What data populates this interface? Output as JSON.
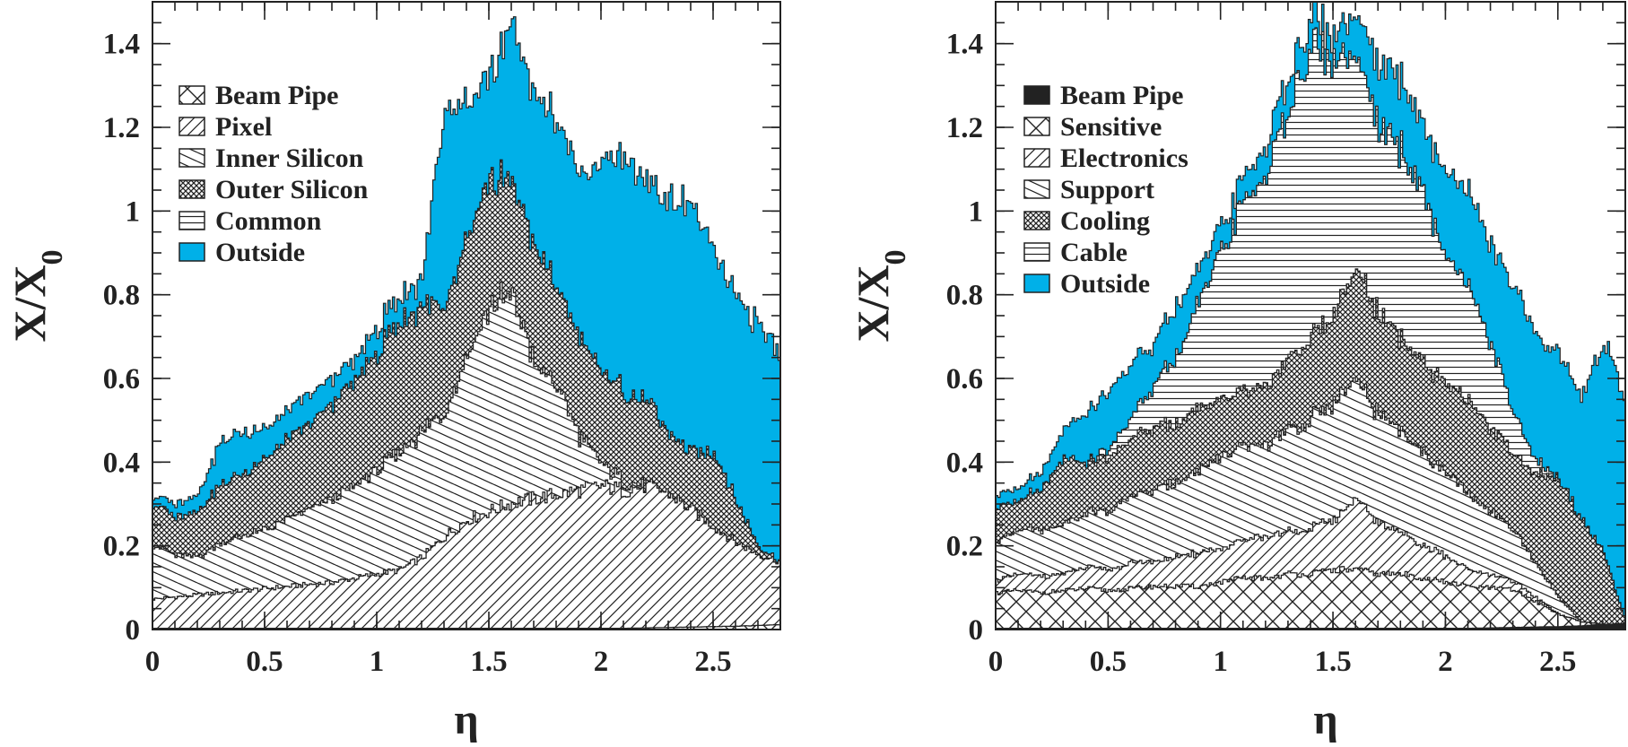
{
  "chart_data": [
    {
      "type": "area",
      "stacked": true,
      "xlabel": "η",
      "ylabel": "X/X0",
      "xlim": [
        0,
        2.8
      ],
      "ylim": [
        0,
        1.5
      ],
      "x_ticks": [
        "0",
        "0.5",
        "1",
        "1.5",
        "2",
        "2.5"
      ],
      "x_tick_values": [
        0,
        0.5,
        1,
        1.5,
        2,
        2.5
      ],
      "y_ticks": [
        "0",
        "0.2",
        "0.4",
        "0.6",
        "0.8",
        "1",
        "1.2",
        "1.4"
      ],
      "y_tick_values": [
        0,
        0.2,
        0.4,
        0.6,
        0.8,
        1.0,
        1.2,
        1.4
      ],
      "legend_position": "top-left",
      "x": [
        0,
        0.1,
        0.2,
        0.3,
        0.4,
        0.5,
        0.6,
        0.7,
        0.8,
        0.9,
        1.0,
        1.1,
        1.2,
        1.3,
        1.4,
        1.5,
        1.6,
        1.7,
        1.8,
        1.9,
        2.0,
        2.1,
        2.2,
        2.3,
        2.4,
        2.5,
        2.6,
        2.7,
        2.8
      ],
      "series": [
        {
          "name": "Beam Pipe",
          "pattern": "crosshatch",
          "values": [
            0.003,
            0.003,
            0.003,
            0.003,
            0.003,
            0.003,
            0.003,
            0.003,
            0.003,
            0.003,
            0.003,
            0.003,
            0.003,
            0.003,
            0.003,
            0.003,
            0.003,
            0.003,
            0.003,
            0.003,
            0.003,
            0.003,
            0.004,
            0.005,
            0.006,
            0.007,
            0.008,
            0.01,
            0.012
          ]
        },
        {
          "name": "Pixel",
          "pattern": "diag-right",
          "values": [
            0.07,
            0.075,
            0.08,
            0.085,
            0.09,
            0.095,
            0.1,
            0.105,
            0.11,
            0.12,
            0.13,
            0.14,
            0.17,
            0.22,
            0.26,
            0.28,
            0.3,
            0.31,
            0.32,
            0.33,
            0.34,
            0.33,
            0.34,
            0.32,
            0.28,
            0.24,
            0.2,
            0.17,
            0.15
          ]
        },
        {
          "name": "Inner Silicon",
          "pattern": "diag-left",
          "values": [
            0.13,
            0.1,
            0.09,
            0.12,
            0.13,
            0.14,
            0.16,
            0.18,
            0.2,
            0.22,
            0.25,
            0.28,
            0.3,
            0.3,
            0.4,
            0.49,
            0.5,
            0.32,
            0.26,
            0.13,
            0.05,
            0.02,
            0.0,
            0.0,
            0.0,
            0.0,
            0.0,
            0.0,
            0.0
          ]
        },
        {
          "name": "Outer Silicon",
          "pattern": "dense-cross",
          "values": [
            0.1,
            0.09,
            0.11,
            0.14,
            0.15,
            0.17,
            0.19,
            0.2,
            0.23,
            0.25,
            0.28,
            0.31,
            0.3,
            0.25,
            0.28,
            0.3,
            0.27,
            0.28,
            0.24,
            0.23,
            0.22,
            0.22,
            0.2,
            0.14,
            0.14,
            0.18,
            0.1,
            0.02,
            0.0
          ]
        },
        {
          "name": "Common",
          "pattern": "horizontal",
          "values": [
            0.0,
            0.0,
            0.0,
            0.0,
            0.0,
            0.0,
            0.0,
            0.0,
            0.0,
            0.0,
            0.0,
            0.0,
            0.0,
            0.0,
            0.0,
            0.0,
            0.0,
            0.0,
            0.0,
            0.0,
            0.0,
            0.0,
            0.0,
            0.0,
            0.0,
            0.0,
            0.0,
            0.0,
            0.0
          ]
        },
        {
          "name": "Outside",
          "pattern": "solid",
          "color": "#00B0E8",
          "values": [
            0.02,
            0.03,
            0.04,
            0.1,
            0.1,
            0.07,
            0.07,
            0.07,
            0.06,
            0.05,
            0.06,
            0.06,
            0.07,
            0.48,
            0.32,
            0.24,
            0.38,
            0.36,
            0.4,
            0.39,
            0.5,
            0.56,
            0.52,
            0.56,
            0.59,
            0.48,
            0.48,
            0.53,
            0.5
          ]
        }
      ]
    },
    {
      "type": "area",
      "stacked": true,
      "xlabel": "η",
      "ylabel": "X/X0",
      "xlim": [
        0,
        2.8
      ],
      "ylim": [
        0,
        1.5
      ],
      "x_ticks": [
        "0",
        "0.5",
        "1",
        "1.5",
        "2",
        "2.5"
      ],
      "x_tick_values": [
        0,
        0.5,
        1,
        1.5,
        2,
        2.5
      ],
      "y_ticks": [
        "0",
        "0.2",
        "0.4",
        "0.6",
        "0.8",
        "1",
        "1.2",
        "1.4"
      ],
      "y_tick_values": [
        0,
        0.2,
        0.4,
        0.6,
        0.8,
        1.0,
        1.2,
        1.4
      ],
      "legend_position": "top-left",
      "x": [
        0,
        0.1,
        0.2,
        0.3,
        0.4,
        0.5,
        0.6,
        0.7,
        0.8,
        0.9,
        1.0,
        1.1,
        1.2,
        1.3,
        1.4,
        1.5,
        1.6,
        1.7,
        1.8,
        1.9,
        2.0,
        2.1,
        2.2,
        2.3,
        2.4,
        2.5,
        2.6,
        2.7,
        2.8
      ],
      "series": [
        {
          "name": "Beam Pipe",
          "pattern": "solid",
          "color": "#222222",
          "values": [
            0.003,
            0.003,
            0.003,
            0.003,
            0.003,
            0.003,
            0.003,
            0.003,
            0.003,
            0.003,
            0.003,
            0.003,
            0.003,
            0.003,
            0.003,
            0.003,
            0.003,
            0.003,
            0.003,
            0.003,
            0.003,
            0.003,
            0.004,
            0.005,
            0.006,
            0.007,
            0.009,
            0.012,
            0.015
          ]
        },
        {
          "name": "Sensitive",
          "pattern": "crosshatch",
          "values": [
            0.085,
            0.09,
            0.085,
            0.09,
            0.095,
            0.09,
            0.095,
            0.1,
            0.1,
            0.1,
            0.11,
            0.12,
            0.12,
            0.13,
            0.13,
            0.14,
            0.14,
            0.13,
            0.13,
            0.12,
            0.11,
            0.1,
            0.095,
            0.09,
            0.06,
            0.03,
            0.01,
            0.0,
            0.0
          ]
        },
        {
          "name": "Electronics",
          "pattern": "diag-right",
          "values": [
            0.03,
            0.04,
            0.04,
            0.04,
            0.05,
            0.05,
            0.06,
            0.06,
            0.07,
            0.08,
            0.08,
            0.09,
            0.1,
            0.1,
            0.11,
            0.12,
            0.17,
            0.12,
            0.1,
            0.08,
            0.06,
            0.04,
            0.03,
            0.02,
            0.01,
            0.0,
            0.0,
            0.0,
            0.0
          ]
        },
        {
          "name": "Support",
          "pattern": "diag-left",
          "values": [
            0.09,
            0.11,
            0.11,
            0.12,
            0.13,
            0.14,
            0.16,
            0.17,
            0.18,
            0.2,
            0.22,
            0.22,
            0.22,
            0.24,
            0.26,
            0.28,
            0.28,
            0.26,
            0.24,
            0.22,
            0.2,
            0.18,
            0.15,
            0.12,
            0.08,
            0.04,
            0.0,
            0.0,
            0.0
          ]
        },
        {
          "name": "Cooling",
          "pattern": "dense-cross",
          "values": [
            0.08,
            0.07,
            0.1,
            0.16,
            0.12,
            0.13,
            0.14,
            0.15,
            0.14,
            0.15,
            0.14,
            0.13,
            0.14,
            0.17,
            0.2,
            0.21,
            0.26,
            0.24,
            0.22,
            0.22,
            0.21,
            0.22,
            0.2,
            0.18,
            0.22,
            0.28,
            0.25,
            0.17,
            0.0
          ]
        },
        {
          "name": "Cable",
          "pattern": "horizontal",
          "values": [
            0.0,
            0.0,
            0.0,
            0.0,
            0.0,
            0.02,
            0.05,
            0.1,
            0.16,
            0.25,
            0.35,
            0.45,
            0.5,
            0.6,
            0.7,
            0.6,
            0.5,
            0.45,
            0.45,
            0.4,
            0.3,
            0.28,
            0.2,
            0.1,
            0.03,
            0.0,
            0.0,
            0.0,
            0.0
          ]
        },
        {
          "name": "Outside",
          "pattern": "solid",
          "color": "#00B0E8",
          "values": [
            0.03,
            0.03,
            0.04,
            0.07,
            0.12,
            0.14,
            0.13,
            0.1,
            0.12,
            0.08,
            0.06,
            0.06,
            0.07,
            0.08,
            0.07,
            0.06,
            0.1,
            0.15,
            0.17,
            0.16,
            0.2,
            0.23,
            0.24,
            0.31,
            0.3,
            0.3,
            0.29,
            0.5,
            0.55
          ]
        }
      ]
    }
  ]
}
